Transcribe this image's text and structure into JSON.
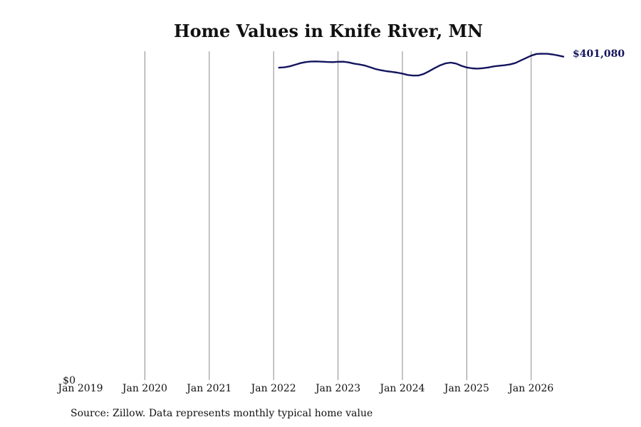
{
  "chart_data": {
    "type": "line",
    "title": "Home Values in Knife River, MN",
    "xlabel": "",
    "ylabel": "",
    "x_ticks": [
      "Jan 2019",
      "Jan 2020",
      "Jan 2021",
      "Jan 2022",
      "Jan 2023",
      "Jan 2024",
      "Jan 2025",
      "Jan 2026"
    ],
    "y_ticks": [
      {
        "value": 0,
        "label": "$0"
      }
    ],
    "ylim": [
      0,
      401080
    ],
    "grid": "vertical",
    "line_color": "#14145e",
    "end_label": "$401,080",
    "series": [
      {
        "points": [
          [
            "2022-02",
            387300
          ],
          [
            "2022-03",
            387800
          ],
          [
            "2022-04",
            389000
          ],
          [
            "2022-05",
            391000
          ],
          [
            "2022-06",
            393000
          ],
          [
            "2022-07",
            394300
          ],
          [
            "2022-08",
            395000
          ],
          [
            "2022-09",
            395100
          ],
          [
            "2022-10",
            394800
          ],
          [
            "2022-11",
            394400
          ],
          [
            "2022-12",
            394200
          ],
          [
            "2023-01",
            394700
          ],
          [
            "2023-02",
            394800
          ],
          [
            "2023-03",
            393900
          ],
          [
            "2023-04",
            392400
          ],
          [
            "2023-05",
            391300
          ],
          [
            "2023-06",
            390000
          ],
          [
            "2023-07",
            387900
          ],
          [
            "2023-08",
            385600
          ],
          [
            "2023-09",
            384100
          ],
          [
            "2023-10",
            383000
          ],
          [
            "2023-11",
            382200
          ],
          [
            "2023-12",
            381200
          ],
          [
            "2024-01",
            380000
          ],
          [
            "2024-02",
            378300
          ],
          [
            "2024-03",
            377500
          ],
          [
            "2024-04",
            377600
          ],
          [
            "2024-05",
            379600
          ],
          [
            "2024-06",
            383100
          ],
          [
            "2024-07",
            386800
          ],
          [
            "2024-08",
            390200
          ],
          [
            "2024-09",
            392600
          ],
          [
            "2024-10",
            393600
          ],
          [
            "2024-11",
            392500
          ],
          [
            "2024-12",
            389600
          ],
          [
            "2025-01",
            387600
          ],
          [
            "2025-02",
            386500
          ],
          [
            "2025-03",
            386200
          ],
          [
            "2025-04",
            386700
          ],
          [
            "2025-05",
            387600
          ],
          [
            "2025-06",
            388900
          ],
          [
            "2025-07",
            389700
          ],
          [
            "2025-08",
            390300
          ],
          [
            "2025-09",
            391300
          ],
          [
            "2025-10",
            393000
          ],
          [
            "2025-11",
            396100
          ],
          [
            "2026-01",
            402300
          ],
          [
            "2026-02",
            404400
          ],
          [
            "2026-03",
            404700
          ],
          [
            "2026-04",
            404600
          ],
          [
            "2026-05",
            403800
          ],
          [
            "2026-06",
            402600
          ],
          [
            "2026-07",
            401080
          ]
        ]
      }
    ]
  },
  "footer": {
    "source": "Source: Zillow. Data represents monthly typical home value"
  }
}
